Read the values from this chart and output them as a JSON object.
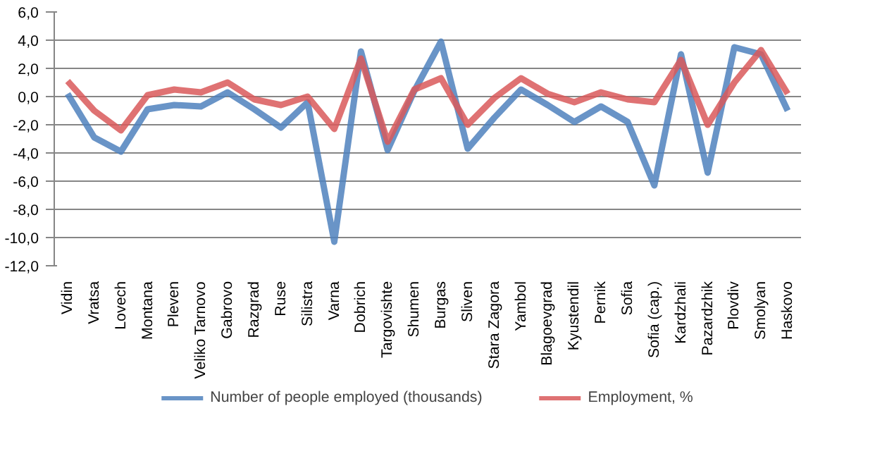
{
  "chart_data": {
    "type": "line",
    "categories": [
      "Vidin",
      "Vratsa",
      "Lovech",
      "Montana",
      "Pleven",
      "Veliko Tarnovo",
      "Gabrovo",
      "Razgrad",
      "Ruse",
      "Silistra",
      "Varna",
      "Dobrich",
      "Targovishte",
      "Shumen",
      "Burgas",
      "Sliven",
      "Stara Zagora",
      "Yambol",
      "Blagoevgrad",
      "Kyustendil",
      "Pernik",
      "Sofia",
      "Sofia (cap.)",
      "Kardzhali",
      "Pazardzhik",
      "Plovdiv",
      "Smolyan",
      "Haskovo"
    ],
    "series": [
      {
        "name": "Number of people employed (thousands)",
        "color": "#4f81bd",
        "values": [
          0.2,
          -2.9,
          -3.9,
          -0.9,
          -0.6,
          -0.7,
          0.3,
          -0.9,
          -2.2,
          -0.4,
          -10.3,
          3.2,
          -3.8,
          0.4,
          3.9,
          -3.7,
          -1.5,
          0.5,
          -0.6,
          -1.8,
          -0.7,
          -1.8,
          -6.3,
          3.0,
          -5.4,
          3.5,
          3.0,
          -1.0
        ]
      },
      {
        "name": "Employment, %",
        "color": "#d9595b",
        "values": [
          1.1,
          -1.0,
          -2.4,
          0.1,
          0.5,
          0.3,
          1.0,
          -0.2,
          -0.6,
          0.0,
          -2.3,
          2.7,
          -3.2,
          0.5,
          1.3,
          -2.0,
          -0.1,
          1.3,
          0.2,
          -0.4,
          0.3,
          -0.2,
          -0.4,
          2.6,
          -2.0,
          1.0,
          3.3,
          0.2
        ]
      }
    ],
    "ylim": [
      -12,
      6
    ],
    "yticks": [
      {
        "value": -12,
        "label": "-12,0"
      },
      {
        "value": -10,
        "label": "-10,0"
      },
      {
        "value": -8,
        "label": "-8,0"
      },
      {
        "value": -6,
        "label": "-6,0"
      },
      {
        "value": -4,
        "label": "-4,0"
      },
      {
        "value": -2,
        "label": "-2,0"
      },
      {
        "value": 0,
        "label": "0,0"
      },
      {
        "value": 2,
        "label": "2,0"
      },
      {
        "value": 4,
        "label": "4,0"
      },
      {
        "value": 6,
        "label": "6,0"
      }
    ],
    "grid": "y",
    "legend": "bottom",
    "marker": "none",
    "line_style": "solid"
  }
}
